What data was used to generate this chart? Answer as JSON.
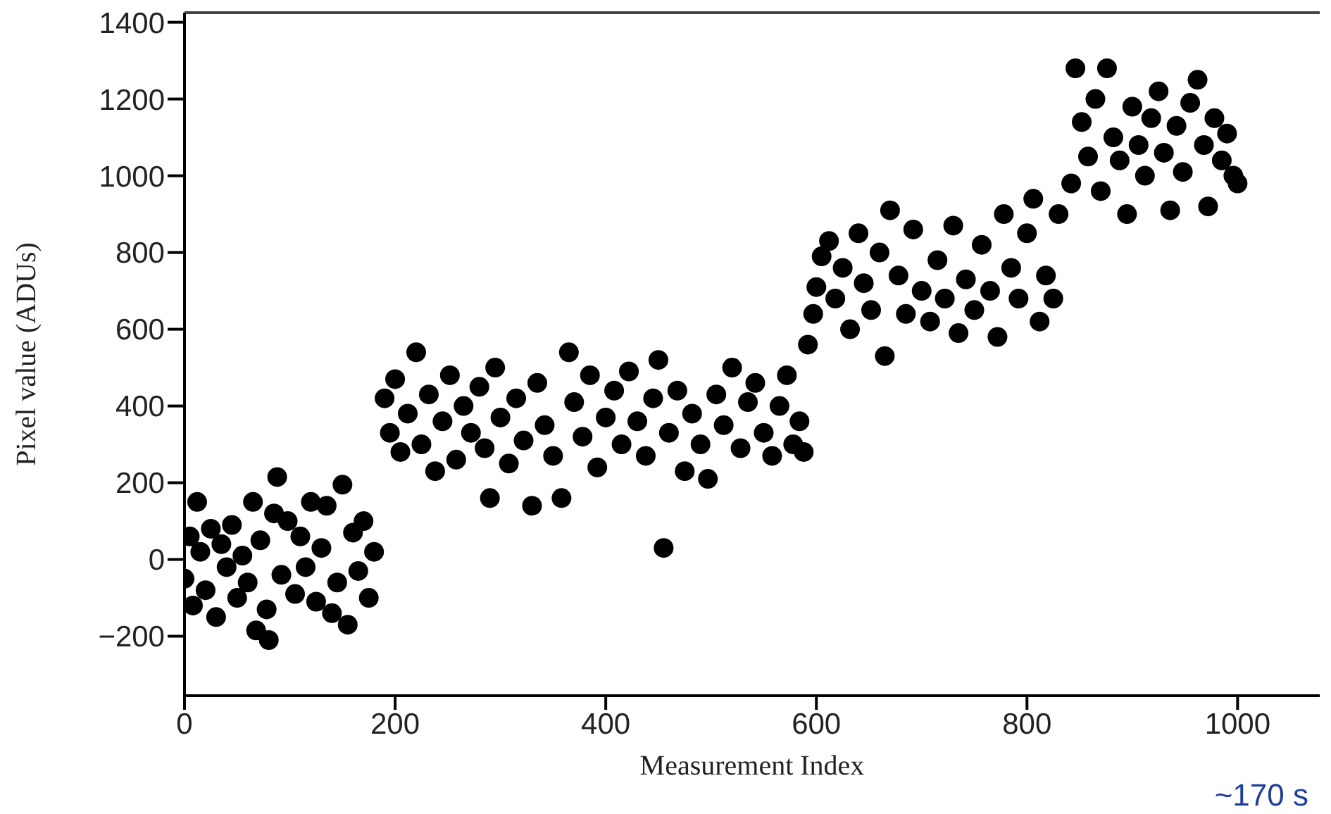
{
  "chart_data": {
    "type": "scatter",
    "xlabel": "Measurement Index",
    "ylabel": "Pixel value (ADUs)",
    "xlim": [
      0,
      1078
    ],
    "ylim": [
      -355,
      1425
    ],
    "xticks": [
      0,
      200,
      400,
      600,
      800,
      1000
    ],
    "yticks": [
      -200,
      0,
      200,
      400,
      600,
      800,
      1000,
      1200,
      1400
    ],
    "marker": "circle",
    "annotations": [
      "~170 s"
    ],
    "series": [
      {
        "color": "#000000",
        "x": [
          0,
          5,
          8,
          12,
          15,
          20,
          25,
          30,
          35,
          40,
          45,
          50,
          55,
          60,
          65,
          68,
          72,
          78,
          80,
          85,
          88,
          92,
          98,
          105,
          110,
          115,
          120,
          125,
          130,
          135,
          140,
          145,
          150,
          155,
          160,
          165,
          170,
          175,
          180,
          190,
          195,
          200,
          205,
          212,
          220,
          225,
          232,
          238,
          245,
          252,
          258,
          265,
          272,
          280,
          285,
          290,
          295,
          300,
          308,
          315,
          322,
          330,
          335,
          342,
          350,
          358,
          365,
          370,
          378,
          385,
          392,
          400,
          408,
          415,
          422,
          430,
          438,
          445,
          450,
          455,
          460,
          468,
          475,
          482,
          490,
          497,
          505,
          512,
          520,
          528,
          535,
          542,
          550,
          558,
          565,
          572,
          578,
          584,
          588,
          592,
          597,
          600,
          605,
          612,
          618,
          625,
          632,
          640,
          645,
          652,
          660,
          665,
          670,
          678,
          685,
          692,
          700,
          708,
          715,
          722,
          730,
          735,
          742,
          750,
          757,
          765,
          772,
          778,
          785,
          792,
          800,
          806,
          812,
          818,
          825,
          830,
          842,
          846,
          852,
          858,
          865,
          870,
          876,
          882,
          888,
          895,
          900,
          906,
          912,
          918,
          925,
          930,
          936,
          942,
          948,
          955,
          962,
          968,
          972,
          978,
          985,
          990,
          996,
          1000
        ],
        "values": [
          -50,
          60,
          -120,
          150,
          20,
          -80,
          80,
          -150,
          40,
          -20,
          90,
          -100,
          10,
          -60,
          150,
          -185,
          50,
          -130,
          -210,
          120,
          215,
          -40,
          100,
          -90,
          60,
          -20,
          150,
          -110,
          30,
          140,
          -140,
          -60,
          195,
          -170,
          70,
          -30,
          100,
          -100,
          20,
          420,
          330,
          470,
          280,
          380,
          540,
          300,
          430,
          230,
          360,
          480,
          260,
          400,
          330,
          450,
          290,
          160,
          500,
          370,
          250,
          420,
          310,
          140,
          460,
          350,
          270,
          160,
          540,
          410,
          320,
          480,
          240,
          370,
          440,
          300,
          490,
          360,
          270,
          420,
          520,
          30,
          330,
          440,
          230,
          380,
          300,
          210,
          430,
          350,
          500,
          290,
          410,
          460,
          330,
          270,
          400,
          480,
          300,
          360,
          280,
          560,
          640,
          710,
          790,
          830,
          680,
          760,
          600,
          850,
          720,
          650,
          800,
          530,
          910,
          740,
          640,
          860,
          700,
          620,
          780,
          680,
          870,
          590,
          730,
          650,
          820,
          700,
          580,
          900,
          760,
          680,
          850,
          940,
          620,
          740,
          680,
          900,
          980,
          1280,
          1140,
          1050,
          1200,
          960,
          1280,
          1100,
          1040,
          900,
          1180,
          1080,
          1000,
          1150,
          1220,
          1060,
          910,
          1130,
          1010,
          1190,
          1250,
          1080,
          920,
          1150,
          1040,
          1110,
          1000,
          980
        ]
      }
    ]
  }
}
